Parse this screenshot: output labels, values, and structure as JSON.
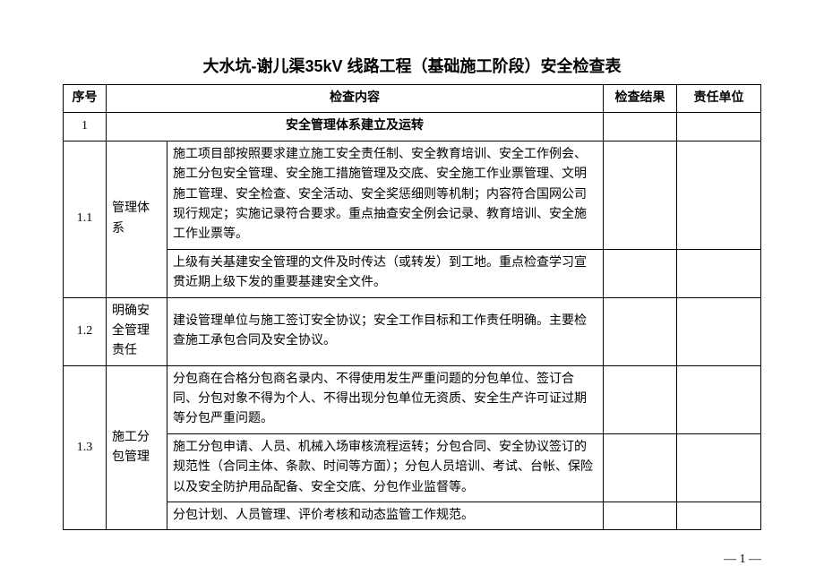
{
  "title": "大水坑-谢儿渠35kV 线路工程（基础施工阶段）安全检查表",
  "headers": {
    "seq": "序号",
    "content": "检查内容",
    "result": "检查结果",
    "unit": "责任单位"
  },
  "section1": {
    "seq": "1",
    "title": "安全管理体系建立及运转"
  },
  "row11": {
    "seq": "1.1",
    "cat": "管理体系",
    "c1": "施工项目部按照要求建立施工安全责任制、安全教育培训、安全工作例会、施工分包安全管理、安全施工措施管理及交底、安全施工作业票管理、文明施工管理、安全检查、安全活动、安全奖惩细则等机制；内容符合国网公司现行规定；实施记录符合要求。重点抽查安全例会记录、教育培训、安全施工作业票等。",
    "c2": "上级有关基建安全管理的文件及时传达（或转发）到工地。重点检查学习宣贯近期上级下发的重要基建安全文件。"
  },
  "row12": {
    "seq": "1.2",
    "cat": "明确安全管理责任",
    "c1": "建设管理单位与施工签订安全协议；安全工作目标和工作责任明确。主要检查施工承包合同及安全协议。"
  },
  "row13": {
    "seq": "1.3",
    "cat": "施工分包管理",
    "c1": "分包商在合格分包商名录内、不得使用发生严重问题的分包单位、签订合同、分包对象不得为个人、不得出现分包单位无资质、安全生产许可证过期等分包严重问题。",
    "c2": "施工分包申请、人员、机械入场审核流程运转；分包合同、安全协议签订的规范性（合同主体、条款、时间等方面）；分包人员培训、考试、台帐、保险以及安全防护用品配备、安全交底、分包作业监督等。",
    "c3": "分包计划、人员管理、评价考核和动态监管工作规范。"
  },
  "page_number": "— 1 —",
  "styling": {
    "background_color": "#ffffff",
    "border_color": "#000000",
    "font_family_title": "SimHei",
    "font_family_body": "SimSun",
    "title_fontsize": 18,
    "body_fontsize": 14,
    "col_widths": {
      "seq": 48,
      "cat": 68,
      "result": 82,
      "unit": 94
    }
  }
}
